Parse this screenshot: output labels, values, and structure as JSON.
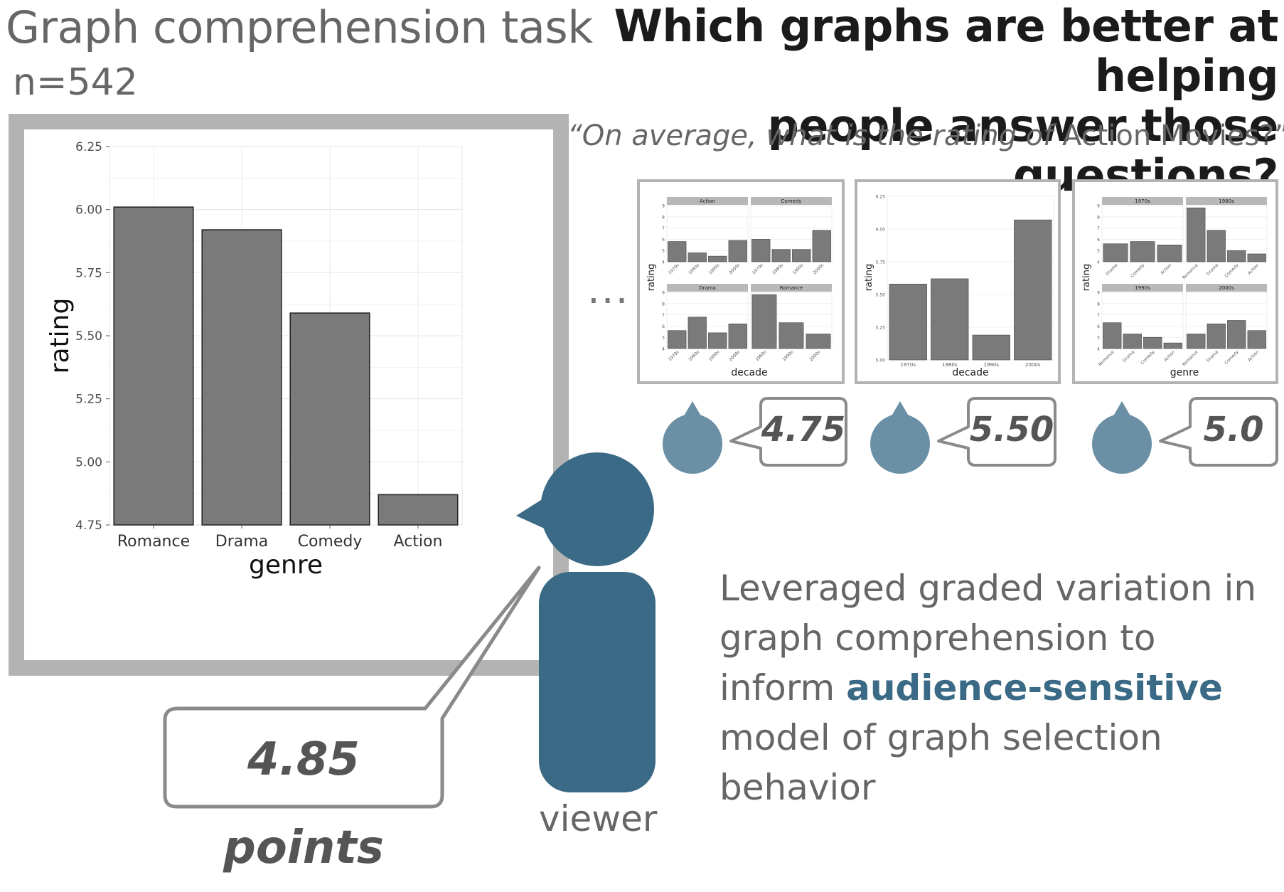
{
  "left_title": "Graph comprehension task",
  "left_subtitle": "n=542",
  "headline": {
    "line1": "Which graphs are better at helping",
    "line2": "people answer those questions?"
  },
  "question": {
    "italic_part": "“On average, what is the rating of",
    "normal_part": "Action Movies?”"
  },
  "ellipsis": "...",
  "main_answer": "4.85 points",
  "viewer_label": "viewer",
  "summary": {
    "part1": "Leveraged graded variation in graph comprehension to inform",
    "highlight": "audience-sensitive",
    "part2": "model of graph selection behavior"
  },
  "thumb_answers": [
    "4.75",
    "5.50",
    "5.0"
  ],
  "colors": {
    "bar_fill": "#7a7a7a",
    "frame": "#b3b3b3",
    "person": "#3a6a85",
    "person_small": "#6b8fa5",
    "callout_border": "#8a8a8a",
    "highlight_text": "#3a6a85"
  },
  "icons": [
    "person-icon",
    "small-person-icon"
  ],
  "chart_data": [
    {
      "type": "bar",
      "categories": [
        "Romance",
        "Drama",
        "Comedy",
        "Action"
      ],
      "values": [
        6.01,
        5.92,
        5.59,
        4.87
      ],
      "xlabel": "genre",
      "ylabel": "rating",
      "ylim": [
        4.75,
        6.25
      ],
      "yticks": [
        "4.75",
        "5.00",
        "5.25",
        "5.50",
        "5.75",
        "6.00",
        "6.25"
      ],
      "grid": true
    },
    {
      "type": "bar",
      "layout": "facet-2x2",
      "facets": [
        {
          "name": "Action",
          "categories": [
            "1970s",
            "1980s",
            "1990s",
            "2000s"
          ],
          "values": [
            5.8,
            4.8,
            4.5,
            5.9
          ]
        },
        {
          "name": "Comedy",
          "categories": [
            "1970s",
            "1980s",
            "1990s",
            "2000s"
          ],
          "values": [
            6.0,
            5.1,
            5.1,
            6.8
          ]
        },
        {
          "name": "Drama",
          "categories": [
            "1970s",
            "1980s",
            "1990s",
            "2000s"
          ],
          "values": [
            5.6,
            6.8,
            5.4,
            6.2
          ]
        },
        {
          "name": "Romance",
          "categories": [
            "1980s",
            "1990s",
            "2000s"
          ],
          "values": [
            8.8,
            6.3,
            5.3
          ]
        }
      ],
      "xlabel": "decade",
      "ylabel": "rating",
      "ylim": [
        4,
        9
      ],
      "yticks": [
        "4",
        "5",
        "6",
        "7",
        "8",
        "9"
      ]
    },
    {
      "type": "bar",
      "categories": [
        "1970s",
        "1980s",
        "1990s",
        "2000s"
      ],
      "values": [
        5.58,
        5.62,
        5.19,
        6.07
      ],
      "xlabel": "decade",
      "ylabel": "rating",
      "ylim": [
        5.0,
        6.25
      ],
      "yticks": [
        "5.00",
        "5.25",
        "5.50",
        "5.75",
        "6.00",
        "6.25"
      ]
    },
    {
      "type": "bar",
      "layout": "facet-2x2",
      "facets": [
        {
          "name": "1970s",
          "categories": [
            "Drama",
            "Comedy",
            "Action"
          ],
          "values": [
            5.6,
            5.8,
            5.5
          ]
        },
        {
          "name": "1980s",
          "categories": [
            "Romance",
            "Drama",
            "Comedy",
            "Action"
          ],
          "values": [
            8.8,
            6.8,
            5.0,
            4.7
          ]
        },
        {
          "name": "1990s",
          "categories": [
            "Romance",
            "Drama",
            "Comedy",
            "Action"
          ],
          "values": [
            6.3,
            5.3,
            5.0,
            4.5
          ]
        },
        {
          "name": "2000s",
          "categories": [
            "Romance",
            "Drama",
            "Comedy",
            "Action"
          ],
          "values": [
            5.3,
            6.2,
            6.5,
            5.6
          ]
        }
      ],
      "xlabel": "genre",
      "ylabel": "rating",
      "ylim": [
        4,
        9
      ],
      "yticks": [
        "4",
        "5",
        "6",
        "7",
        "8",
        "9"
      ]
    }
  ]
}
